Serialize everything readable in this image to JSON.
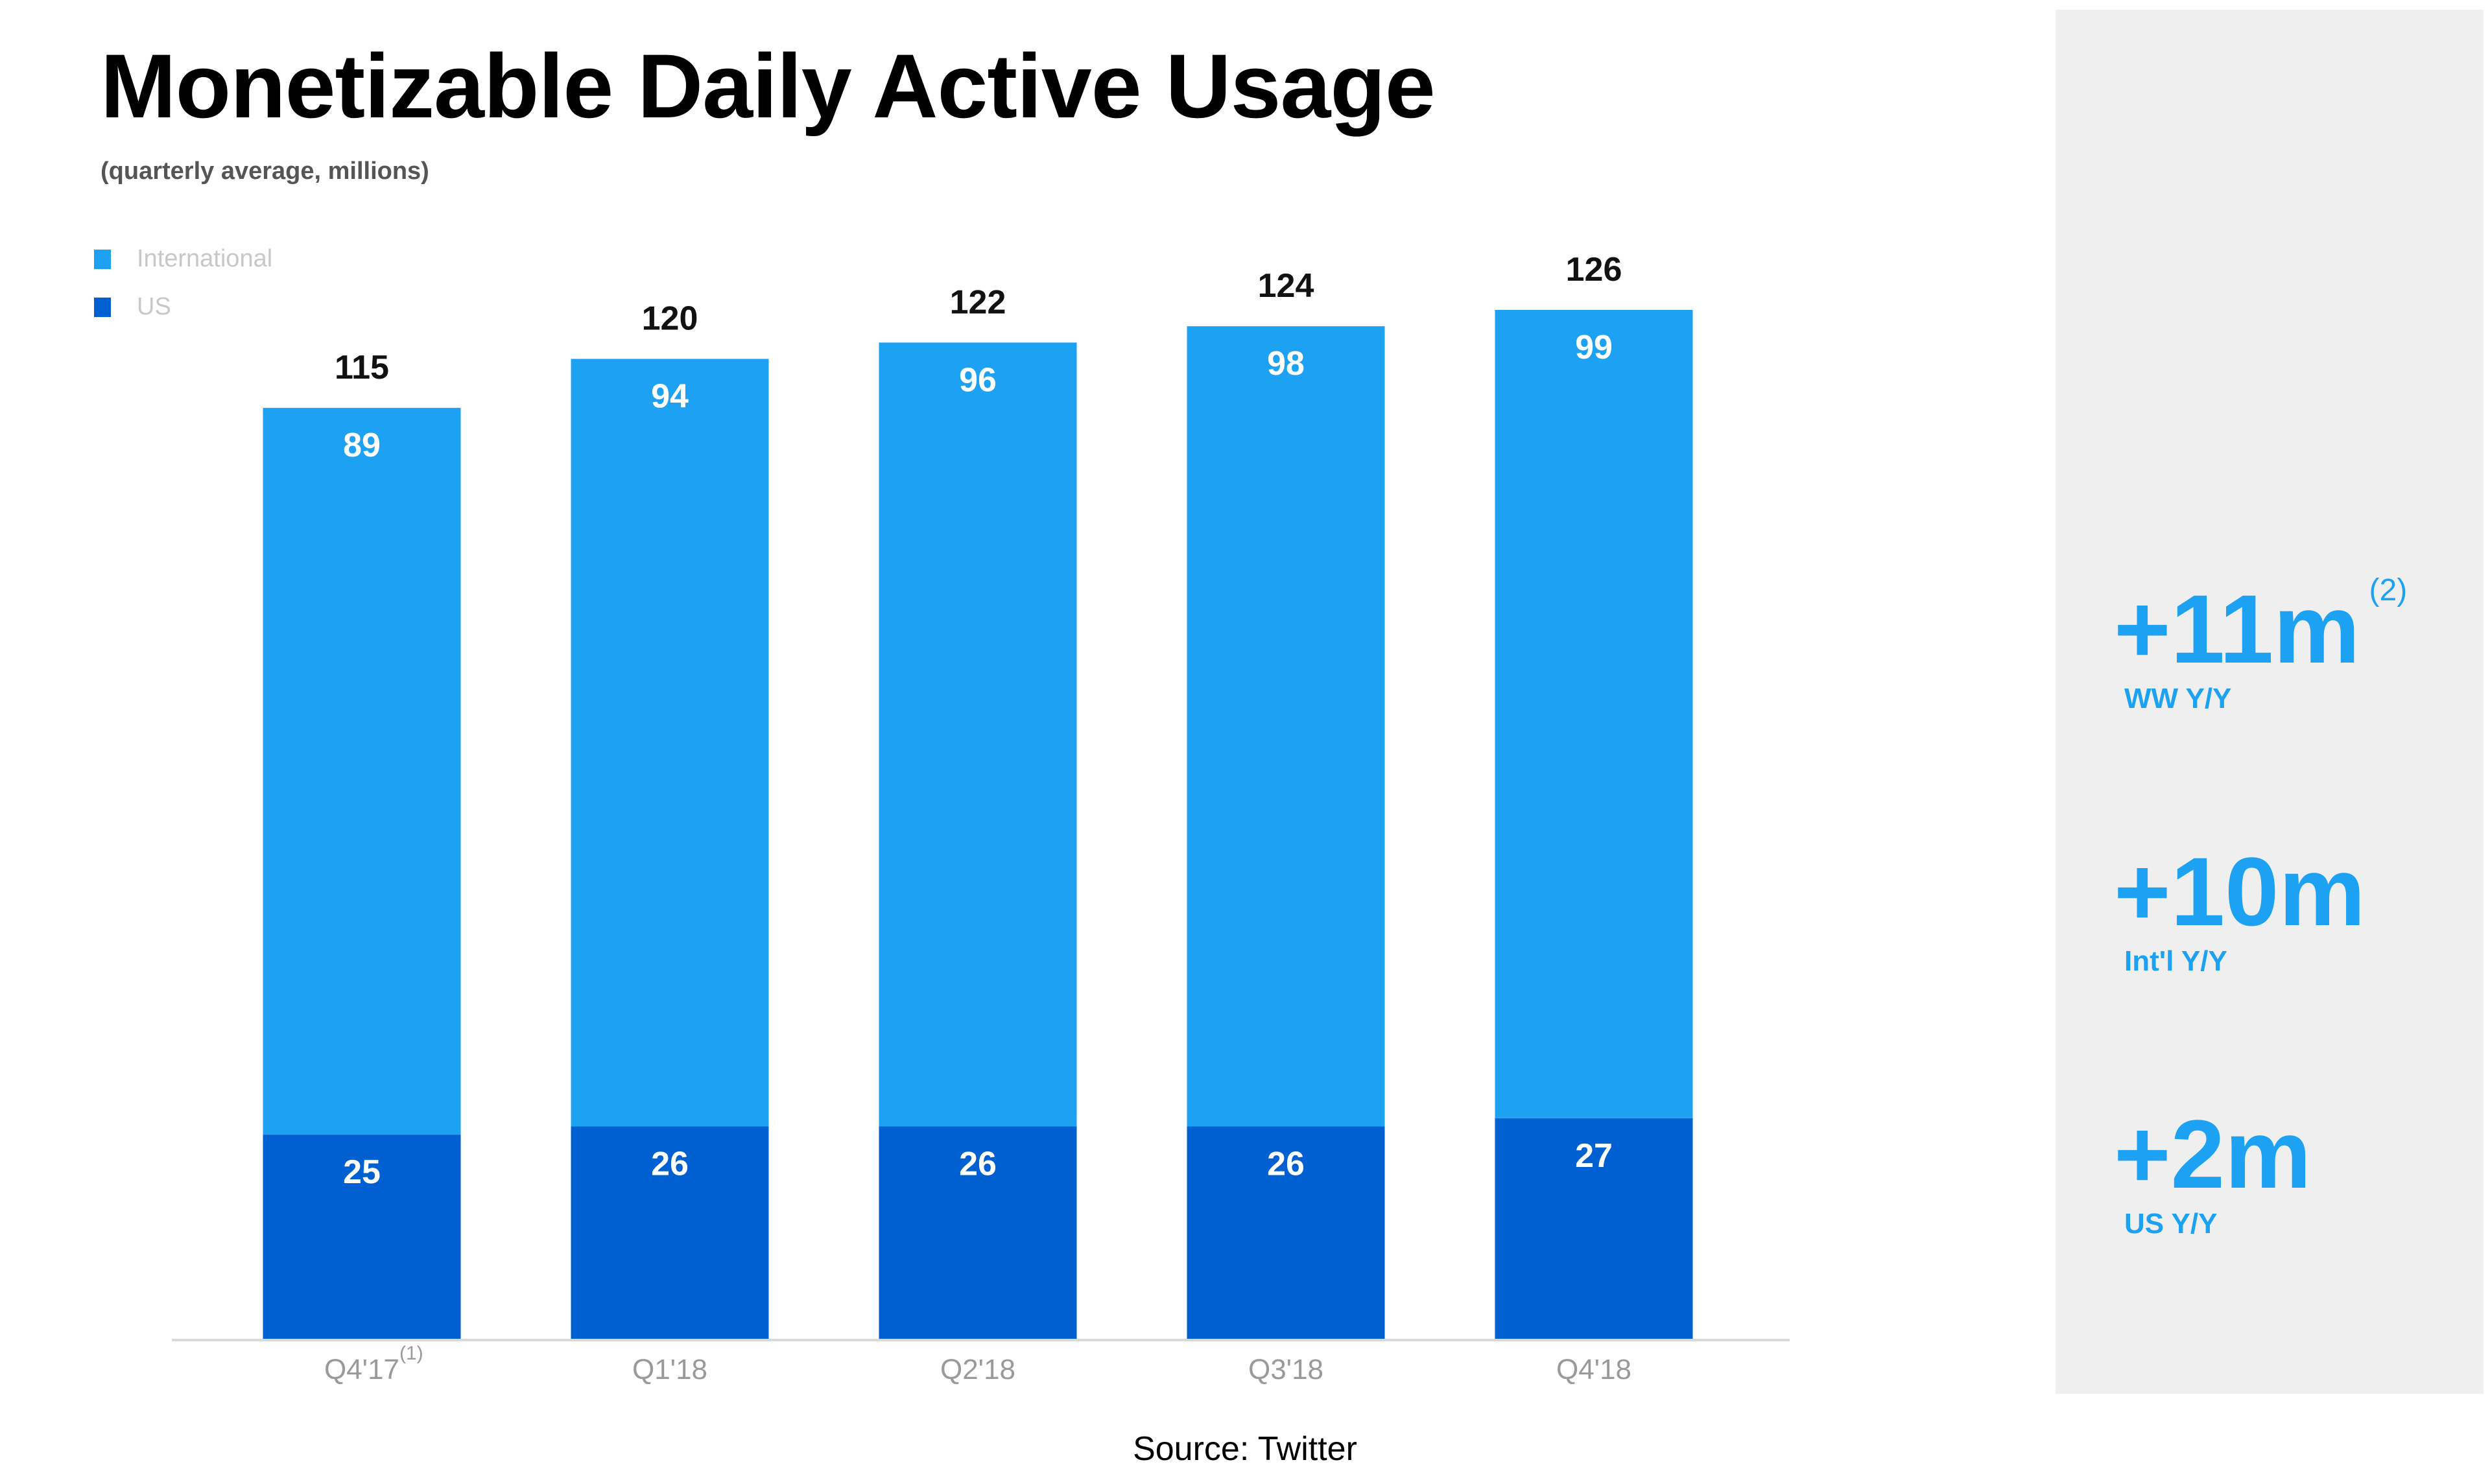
{
  "title": "Monetizable Daily Active Usage",
  "subtitle": "(quarterly average, millions)",
  "legend": [
    {
      "label": "International",
      "color": "#1da1f2"
    },
    {
      "label": "US",
      "color": "#005fd1"
    }
  ],
  "side_stats": [
    {
      "value": "+11m",
      "sup": "(2)",
      "label": "WW Y/Y"
    },
    {
      "value": "+10m",
      "sup": "",
      "label": "Int'l Y/Y"
    },
    {
      "value": "+2m",
      "sup": "",
      "label": "US Y/Y"
    }
  ],
  "source": "Source: Twitter",
  "chart_data": {
    "type": "bar",
    "stacked": true,
    "categories": [
      "Q4'17",
      "Q1'18",
      "Q2'18",
      "Q3'18",
      "Q4'18"
    ],
    "category_superscripts": [
      "(1)",
      "",
      "",
      "",
      ""
    ],
    "series": [
      {
        "name": "US",
        "values": [
          25,
          26,
          26,
          26,
          27
        ],
        "color": "#005fd1"
      },
      {
        "name": "International",
        "values": [
          89,
          94,
          96,
          98,
          99
        ],
        "color": "#1da1f2"
      }
    ],
    "totals": [
      115,
      120,
      122,
      124,
      126
    ],
    "title": "Monetizable Daily Active Usage",
    "subtitle": "(quarterly average, millions)",
    "xlabel": "",
    "ylabel": "",
    "ylim": [
      0,
      126
    ],
    "grid": false,
    "legend_position": "top-left"
  }
}
